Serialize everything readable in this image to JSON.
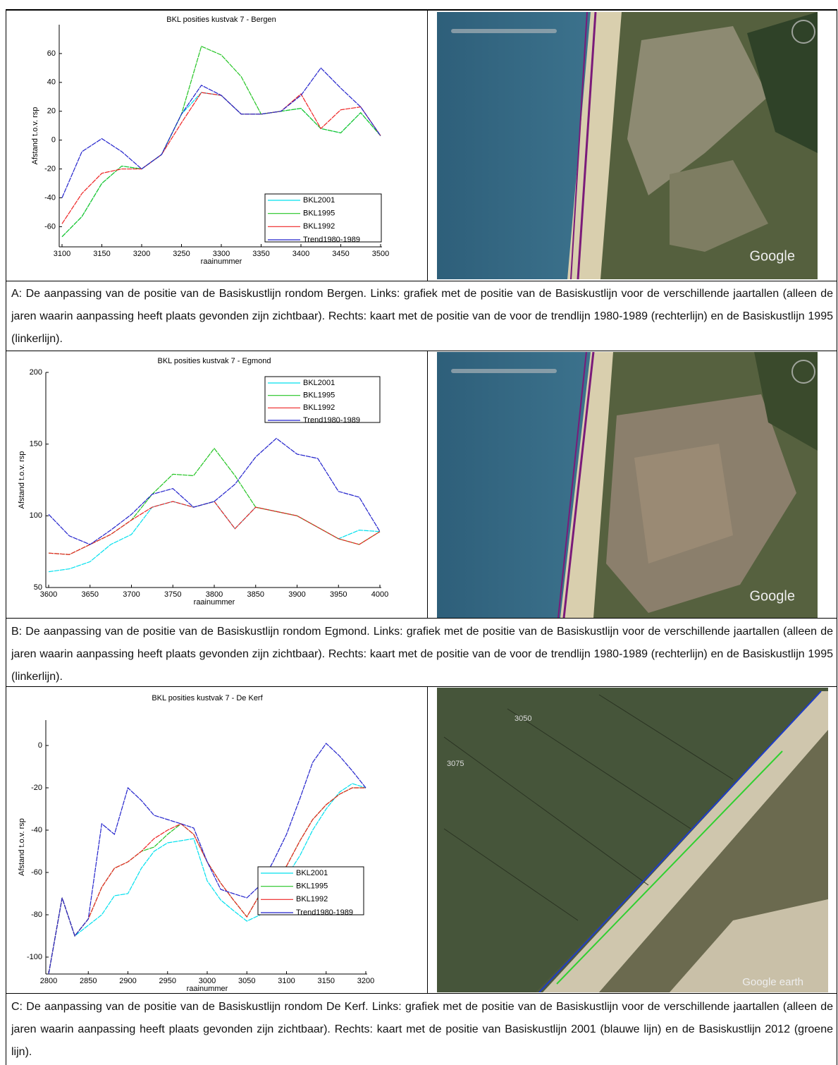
{
  "chart_data": [
    {
      "type": "line",
      "title": "BKL posities kustvak 7 - Bergen",
      "x_label": "raainummer",
      "y_label": "Afstand t.o.v. rsp",
      "x": [
        3100,
        3125,
        3150,
        3175,
        3200,
        3225,
        3250,
        3275,
        3300,
        3325,
        3350,
        3375,
        3400,
        3425,
        3450,
        3475,
        3500
      ],
      "series": [
        {
          "name": "BKL2001",
          "color": "#00e0ee",
          "values": [
            -67,
            -53,
            -30,
            -18,
            -20,
            -10,
            18,
            33,
            31,
            18,
            18,
            20,
            22,
            8,
            5,
            19,
            3
          ]
        },
        {
          "name": "BKL1995",
          "color": "#22c422",
          "values": [
            -67,
            -53,
            -30,
            -18,
            -20,
            -10,
            18,
            65,
            59,
            44,
            18,
            20,
            22,
            8,
            5,
            19,
            3
          ]
        },
        {
          "name": "BKL1992",
          "color": "#ee2222",
          "values": [
            -58,
            -37,
            -23,
            -20,
            -20,
            -10,
            12,
            33,
            31,
            18,
            18,
            20,
            32,
            8,
            21,
            23,
            3
          ]
        },
        {
          "name": "Trend1980-1989",
          "color": "#2222cc",
          "values": [
            -40,
            -8,
            1,
            -8,
            -20,
            -10,
            18,
            38,
            31,
            18,
            18,
            20,
            31,
            50,
            36,
            23,
            3
          ]
        }
      ],
      "xlim": [
        3100,
        3500
      ],
      "xticks": [
        3100,
        3150,
        3200,
        3250,
        3300,
        3350,
        3400,
        3450,
        3500
      ],
      "ylim": [
        -74,
        80
      ],
      "yticks": [
        -60,
        -40,
        -20,
        0,
        20,
        40,
        60
      ]
    },
    {
      "type": "line",
      "title": "BKL posities kustvak 7 - Egmond",
      "x_label": "raainummer",
      "y_label": "Afstand t.o.v. rsp",
      "x": [
        3600,
        3625,
        3650,
        3675,
        3700,
        3725,
        3750,
        3775,
        3800,
        3825,
        3850,
        3875,
        3900,
        3925,
        3950,
        3975,
        4000
      ],
      "series": [
        {
          "name": "BKL2001",
          "color": "#00e0ee",
          "values": [
            61,
            63,
            68,
            80,
            87,
            106,
            110,
            106,
            110,
            91,
            106,
            103,
            100,
            92,
            84,
            90,
            89
          ]
        },
        {
          "name": "BKL1995",
          "color": "#22c422",
          "values": [
            74,
            73,
            80,
            87,
            97,
            115,
            129,
            128,
            147,
            128,
            106,
            103,
            100,
            92,
            84,
            80,
            89
          ]
        },
        {
          "name": "BKL1992",
          "color": "#ee2222",
          "values": [
            74,
            73,
            80,
            87,
            97,
            106,
            110,
            106,
            110,
            91,
            106,
            103,
            100,
            92,
            84,
            80,
            89
          ]
        },
        {
          "name": "Trend1980-1989",
          "color": "#2222cc",
          "values": [
            101,
            86,
            80,
            90,
            101,
            115,
            119,
            106,
            110,
            122,
            141,
            154,
            143,
            140,
            117,
            113,
            89
          ]
        }
      ],
      "xlim": [
        3600,
        4000
      ],
      "xticks": [
        3600,
        3650,
        3700,
        3750,
        3800,
        3850,
        3900,
        3950,
        4000
      ],
      "ylim": [
        50,
        200
      ],
      "yticks": [
        50,
        100,
        150,
        200
      ]
    },
    {
      "type": "line",
      "title": "BKL posities kustvak 7 - De Kerf",
      "x_label": "raainummer",
      "y_label": "Afstand t.o.v. rsp",
      "x": [
        2800,
        2817,
        2833,
        2850,
        2867,
        2883,
        2900,
        2917,
        2933,
        2950,
        2967,
        2983,
        3000,
        3017,
        3033,
        3050,
        3067,
        3083,
        3100,
        3117,
        3133,
        3150,
        3167,
        3183,
        3200
      ],
      "series": [
        {
          "name": "BKL2001",
          "color": "#00e0ee",
          "values": [
            -108,
            -72,
            -90,
            -85,
            -80,
            -71,
            -70,
            -58,
            -50,
            -46,
            -45,
            -44,
            -64,
            -73,
            -78,
            -83,
            -80,
            -72,
            -62,
            -52,
            -40,
            -30,
            -22,
            -18,
            -20
          ]
        },
        {
          "name": "BKL1995",
          "color": "#22c422",
          "values": [
            -108,
            -72,
            -90,
            -82,
            -67,
            -58,
            -55,
            -50,
            -48,
            -42,
            -37,
            -42,
            -55,
            -65,
            -73,
            -81,
            -70,
            -62,
            -57,
            -45,
            -35,
            -28,
            -23,
            -20,
            -20
          ]
        },
        {
          "name": "BKL1992",
          "color": "#ee2222",
          "values": [
            -108,
            -72,
            -90,
            -82,
            -67,
            -58,
            -55,
            -50,
            -44,
            -40,
            -37,
            -42,
            -55,
            -65,
            -73,
            -81,
            -70,
            -62,
            -57,
            -45,
            -35,
            -28,
            -23,
            -20,
            -20
          ]
        },
        {
          "name": "Trend1980-1989",
          "color": "#2222cc",
          "values": [
            -108,
            -72,
            -90,
            -82,
            -37,
            -42,
            -20,
            -26,
            -33,
            -35,
            -37,
            -39,
            -55,
            -68,
            -70,
            -72,
            -66,
            -55,
            -42,
            -25,
            -8,
            1,
            -5,
            -12,
            -20
          ]
        }
      ],
      "xlim": [
        2800,
        3200
      ],
      "xticks": [
        2800,
        2850,
        2900,
        2950,
        3000,
        3050,
        3100,
        3150,
        3200
      ],
      "ylim": [
        -108,
        12
      ],
      "yticks": [
        -100,
        -80,
        -60,
        -40,
        -20,
        0
      ]
    }
  ],
  "maps": [
    {
      "logo": "Google"
    },
    {
      "logo": "Google"
    },
    {
      "labels": [
        "3050",
        "3075"
      ],
      "logo": "Google earth"
    }
  ],
  "captions": [
    "A: De aanpassing van de positie van de Basiskustlijn  rondom Bergen. Links: grafiek met de positie van de Basiskustlijn voor de  verschillende jaartallen (alleen de jaren waarin aanpassing heeft plaats gevonden zijn zichtbaar). Rechts: kaart met  de positie van de voor de trendlijn 1980-1989 (rechterlijn) en de Basiskustlijn 1995 (linkerlijn).",
    "B: De aanpassing van de positie van de Basiskustlijn  rondom Egmond. Links: grafiek met de positie van de Basiskustlijn voor de  verschillende jaartallen (alleen de jaren waarin aanpassing heeft plaats gevonden zijn zichtbaar). Rechts: kaart met  de positie van de voor de trendlijn 1980-1989 (rechterlijn) en de Basiskustlijn 1995 (linkerlijn).",
    "C: De aanpassing van de positie van de Basiskustlijn rondom De Kerf. Links: grafiek met de positie van de Basiskustlijn voor de  verschillende jaartallen (alleen de jaren waarin aanpassing heeft plaats gevonden zijn zichtbaar). Rechts: kaart met  de positie van Basiskustlijn 2001 (blauwe lijn)  en de Basiskustlijn 2012  (groene lijn)."
  ]
}
